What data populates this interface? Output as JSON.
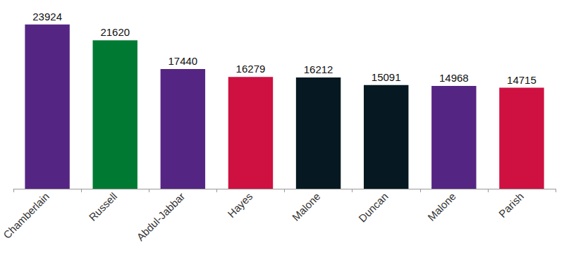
{
  "chart_data": {
    "type": "bar",
    "categories": [
      "Chamberlain",
      "Russell",
      "Abdul-Jabbar",
      "Hayes",
      "Malone",
      "Duncan",
      "Malone",
      "Parish"
    ],
    "values": [
      23924,
      21620,
      17440,
      16279,
      16212,
      15091,
      14968,
      14715
    ],
    "colors": [
      "#552583",
      "#007a33",
      "#552583",
      "#ce1141",
      "#061922",
      "#061922",
      "#552583",
      "#ce1141"
    ],
    "ylim": [
      0,
      24000
    ],
    "yticks": [
      0,
      24000
    ],
    "grid": false,
    "data_labels": true,
    "tick_labels": "x"
  }
}
